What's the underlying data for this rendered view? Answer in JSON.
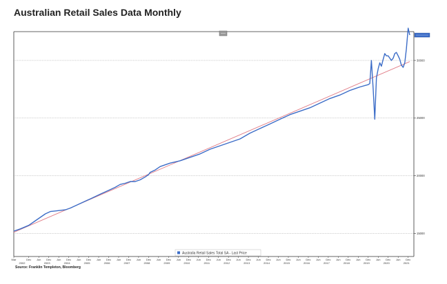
{
  "page": {
    "title": "Australian Retail Sales Data Monthly",
    "source": "Source: Franklin Templeton, Bloomberg"
  },
  "colors": {
    "series_line": "#3b6cc7",
    "trend_line": "#e07a84",
    "last_price_marker": "#3b6cc7",
    "grid": "#999999"
  },
  "chart_data": {
    "type": "line",
    "title": "",
    "xlabel": "",
    "ylabel": "",
    "ylim": [
      13000,
      32500
    ],
    "yticks": [
      15000,
      20000,
      25000,
      30000
    ],
    "ytick_labels": [
      "15000",
      "20000",
      "25000",
      "30000"
    ],
    "grid_lines": [
      15000,
      20000,
      25000,
      30000
    ],
    "last_value_marker": 32200,
    "legend": {
      "placement": "bottom-center",
      "entries": [
        "Australia Retail Sales Total SA - Last Price"
      ]
    },
    "x_ticks": [
      {
        "t": 2002.17,
        "top": "Mar",
        "bottom": "2002"
      },
      {
        "t": 2002.92,
        "top": "Dec",
        "bottom": ""
      },
      {
        "t": 2003.42,
        "top": "Jun",
        "bottom": "2003"
      },
      {
        "t": 2003.92,
        "top": "Dec",
        "bottom": ""
      },
      {
        "t": 2004.42,
        "top": "Jun",
        "bottom": "2004"
      },
      {
        "t": 2004.92,
        "top": "Dec",
        "bottom": ""
      },
      {
        "t": 2005.42,
        "top": "Jun",
        "bottom": "2005"
      },
      {
        "t": 2005.92,
        "top": "Dec",
        "bottom": ""
      },
      {
        "t": 2006.42,
        "top": "Jun",
        "bottom": "2006"
      },
      {
        "t": 2006.92,
        "top": "Dec",
        "bottom": ""
      },
      {
        "t": 2007.42,
        "top": "Jun",
        "bottom": "2007"
      },
      {
        "t": 2007.92,
        "top": "Dec",
        "bottom": ""
      },
      {
        "t": 2008.42,
        "top": "Jun",
        "bottom": "2008"
      },
      {
        "t": 2008.92,
        "top": "Dec",
        "bottom": ""
      },
      {
        "t": 2009.42,
        "top": "Jun",
        "bottom": "2009"
      },
      {
        "t": 2009.92,
        "top": "Dec",
        "bottom": ""
      },
      {
        "t": 2010.42,
        "top": "Jun",
        "bottom": "2010"
      },
      {
        "t": 2010.92,
        "top": "Dec",
        "bottom": ""
      },
      {
        "t": 2011.42,
        "top": "Jun",
        "bottom": "2011"
      },
      {
        "t": 2011.92,
        "top": "Dec",
        "bottom": ""
      },
      {
        "t": 2012.42,
        "top": "Jun",
        "bottom": "2012"
      },
      {
        "t": 2012.92,
        "top": "Dec",
        "bottom": ""
      },
      {
        "t": 2013.42,
        "top": "Jun",
        "bottom": "2013"
      },
      {
        "t": 2013.92,
        "top": "Dec",
        "bottom": ""
      },
      {
        "t": 2014.42,
        "top": "Jun",
        "bottom": "2014"
      },
      {
        "t": 2014.92,
        "top": "Dec",
        "bottom": ""
      },
      {
        "t": 2015.42,
        "top": "Jun",
        "bottom": "2015"
      },
      {
        "t": 2015.92,
        "top": "Dec",
        "bottom": ""
      },
      {
        "t": 2016.42,
        "top": "Jun",
        "bottom": "2016"
      },
      {
        "t": 2016.92,
        "top": "Dec",
        "bottom": ""
      },
      {
        "t": 2017.42,
        "top": "Jun",
        "bottom": "2017"
      },
      {
        "t": 2017.92,
        "top": "Dec",
        "bottom": ""
      },
      {
        "t": 2018.42,
        "top": "Jun",
        "bottom": "2018"
      },
      {
        "t": 2018.92,
        "top": "Dec",
        "bottom": ""
      },
      {
        "t": 2019.42,
        "top": "Jun",
        "bottom": "2019"
      },
      {
        "t": 2019.92,
        "top": "Dec",
        "bottom": ""
      },
      {
        "t": 2020.42,
        "top": "Jun",
        "bottom": "2020"
      },
      {
        "t": 2020.92,
        "top": "Dec",
        "bottom": ""
      },
      {
        "t": 2021.42,
        "top": "Jun",
        "bottom": "2021"
      },
      {
        "t": 2021.92,
        "top": "Dec",
        "bottom": ""
      }
    ],
    "series": [
      {
        "name": "Australia Retail Sales Total SA - Last Price",
        "role": "actual",
        "x": [
          2002.17,
          2002.5,
          2002.92,
          2003.25,
          2003.5,
          2003.75,
          2004.0,
          2004.25,
          2004.5,
          2004.75,
          2005.0,
          2005.5,
          2006.0,
          2006.5,
          2007.0,
          2007.25,
          2007.5,
          2007.75,
          2008.0,
          2008.25,
          2008.5,
          2008.75,
          2008.92,
          2009.0,
          2009.25,
          2009.5,
          2010.0,
          2010.5,
          2011.0,
          2011.5,
          2012.0,
          2012.5,
          2013.0,
          2013.5,
          2014.0,
          2014.5,
          2015.0,
          2015.5,
          2016.0,
          2016.5,
          2017.0,
          2017.5,
          2018.0,
          2018.5,
          2019.0,
          2019.5,
          2019.92,
          2020.0,
          2020.08,
          2020.17,
          2020.25,
          2020.33,
          2020.42,
          2020.5,
          2020.58,
          2020.67,
          2020.75,
          2020.83,
          2020.92,
          2021.0,
          2021.08,
          2021.17,
          2021.25,
          2021.33,
          2021.42,
          2021.5,
          2021.58,
          2021.67,
          2021.75,
          2021.83,
          2021.92,
          2022.0
        ],
        "values": [
          15200,
          15400,
          15700,
          16100,
          16400,
          16700,
          16900,
          16950,
          17000,
          17050,
          17200,
          17600,
          18000,
          18400,
          18800,
          19000,
          19250,
          19350,
          19500,
          19500,
          19650,
          19900,
          20100,
          20300,
          20500,
          20800,
          21100,
          21300,
          21600,
          21900,
          22300,
          22600,
          22900,
          23200,
          23700,
          24100,
          24500,
          24900,
          25300,
          25600,
          25900,
          26300,
          26700,
          27000,
          27400,
          27700,
          27900,
          28000,
          30000,
          27500,
          24900,
          28500,
          29300,
          29800,
          29500,
          30100,
          30600,
          30400,
          30400,
          30200,
          30000,
          30200,
          30600,
          30700,
          30400,
          30100,
          29600,
          29400,
          29800,
          31000,
          32800,
          32200
        ]
      },
      {
        "name": "",
        "role": "trend",
        "x": [
          2002.17,
          2022.0
        ],
        "values": [
          15100,
          29900
        ]
      }
    ]
  }
}
